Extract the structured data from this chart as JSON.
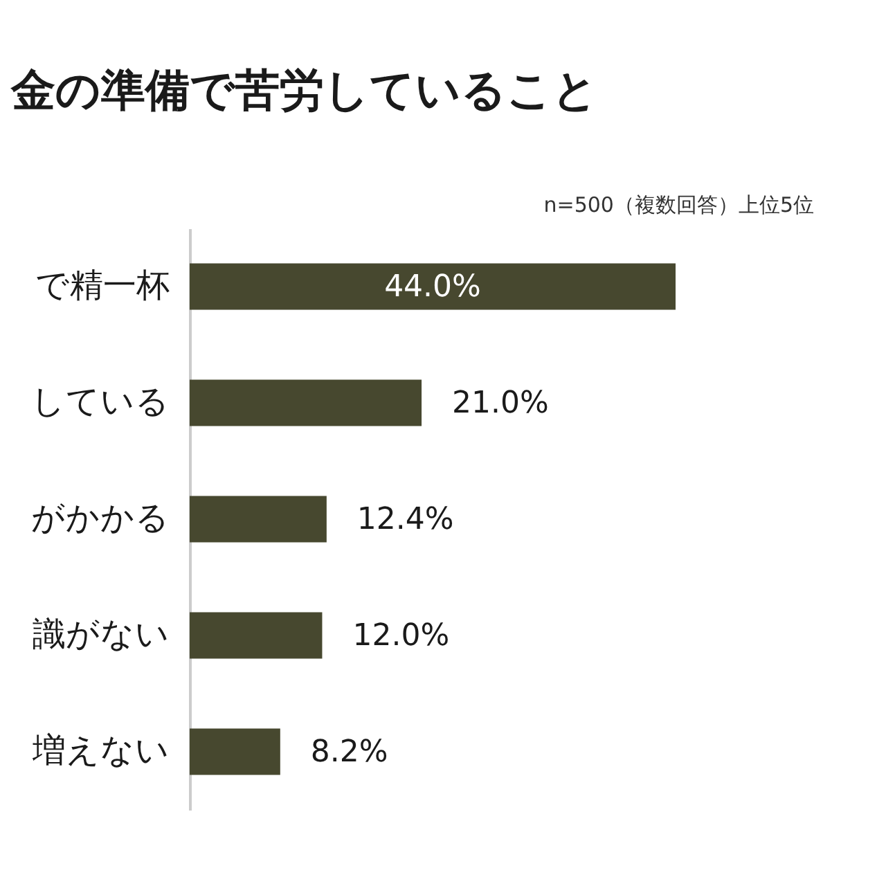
{
  "chart_data": {
    "type": "bar",
    "orientation": "horizontal",
    "title": "金の準備で苦労していること",
    "subtitle": "n=500（複数回答）上位5位",
    "categories": [
      "で精一杯",
      "している",
      "がかかる",
      "識がない",
      "増えない"
    ],
    "values": [
      44.0,
      21.0,
      12.4,
      12.0,
      8.2
    ],
    "value_labels": [
      "44.0%",
      "21.0%",
      "12.4%",
      "12.0%",
      "8.2%"
    ],
    "color": "#47482f",
    "tick_labels": "y"
  }
}
